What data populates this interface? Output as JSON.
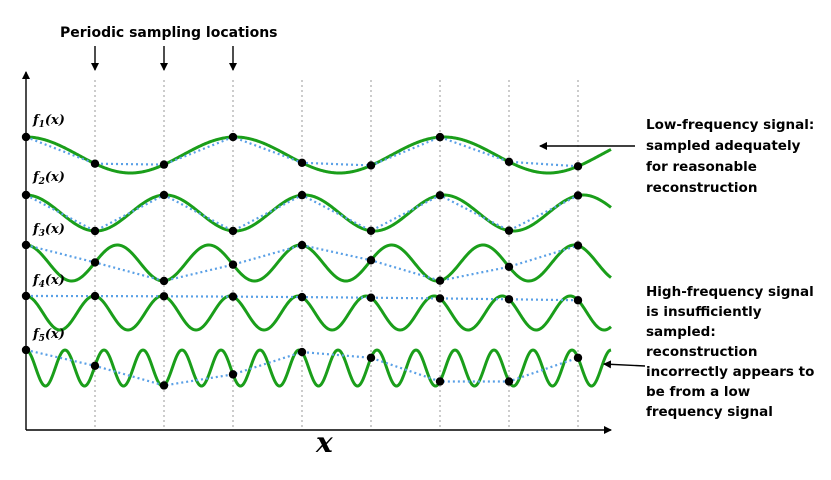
{
  "figure": {
    "top_label": "Periodic sampling locations",
    "x_axis_label": "x",
    "annotations": {
      "low_frequency": [
        "Low-frequency signal:",
        "sampled adequately",
        "for reasonable",
        "reconstruction"
      ],
      "high_frequency": [
        "High-frequency signal",
        "is insufficiently",
        "sampled:",
        "reconstruction",
        "incorrectly appears to",
        "be from a low",
        "frequency signal"
      ]
    },
    "functions": [
      {
        "name": "f",
        "sub": "1",
        "arg": "(x)",
        "cycles": 2.8,
        "phase_deg": 90
      },
      {
        "name": "f",
        "sub": "2",
        "arg": "(x)",
        "cycles": 4.2,
        "phase_deg": 90
      },
      {
        "name": "f",
        "sub": "3",
        "arg": "(x)",
        "cycles": 6.4,
        "phase_deg": 90
      },
      {
        "name": "f",
        "sub": "4",
        "arg": "(x)",
        "cycles": 8.6,
        "phase_deg": 90
      },
      {
        "name": "f",
        "sub": "5",
        "arg": "(x)",
        "cycles": 15.0,
        "phase_deg": 90
      }
    ],
    "sample_count": 9,
    "colors": {
      "signal": "#1a9e1a",
      "reconstruction": "#5aa0e6",
      "sample_point": "#000000",
      "grid": "#999999",
      "axis": "#000000"
    }
  }
}
